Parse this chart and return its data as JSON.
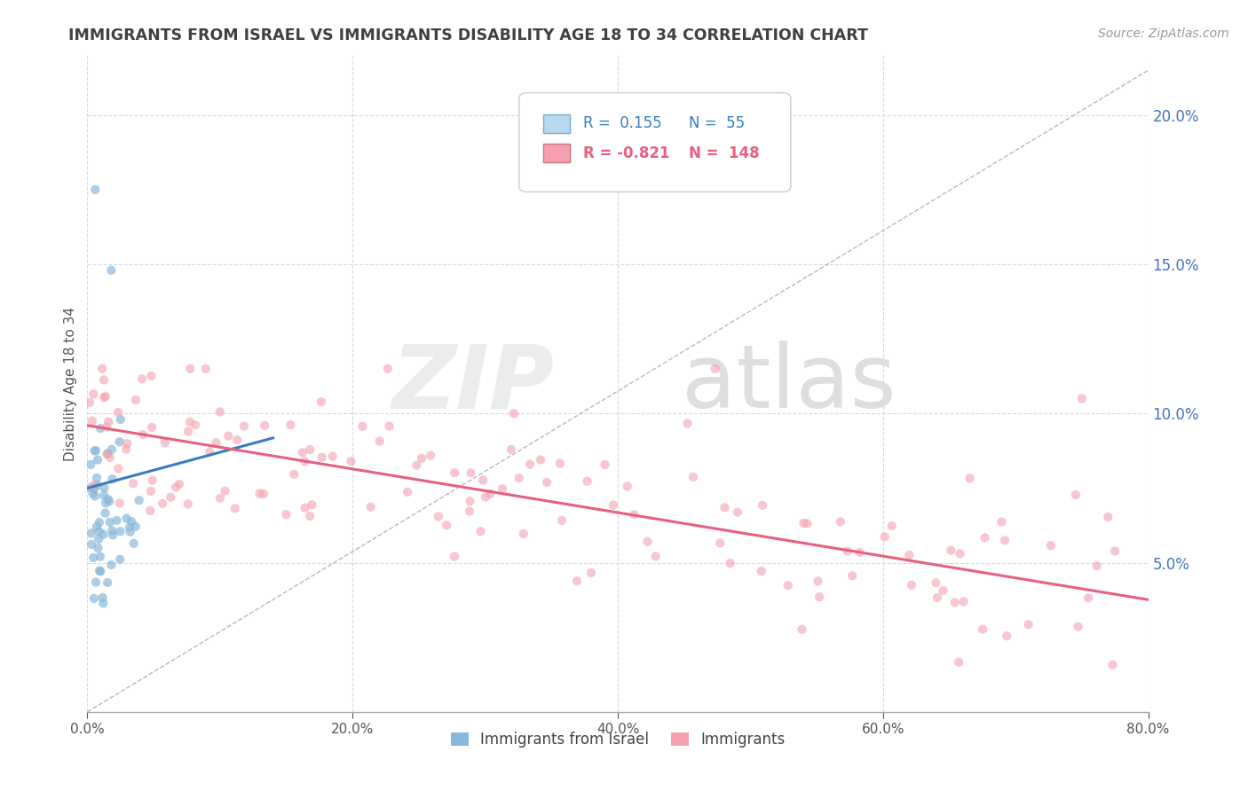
{
  "title": "IMMIGRANTS FROM ISRAEL VS IMMIGRANTS DISABILITY AGE 18 TO 34 CORRELATION CHART",
  "source_text": "Source: ZipAtlas.com",
  "ylabel": "Disability Age 18 to 34",
  "xlim": [
    0.0,
    0.8
  ],
  "ylim": [
    0.0,
    0.22
  ],
  "xtick_values": [
    0.0,
    0.2,
    0.4,
    0.6,
    0.8
  ],
  "ytick_values": [
    0.05,
    0.1,
    0.15,
    0.2
  ],
  "legend1_label": "Immigrants from Israel",
  "legend2_label": "Immigrants",
  "blue_R": 0.155,
  "blue_N": 55,
  "pink_R": -0.821,
  "pink_N": 148,
  "blue_scatter_color": "#89b8db",
  "pink_scatter_color": "#f4a0b0",
  "blue_line_color": "#3a7bbf",
  "pink_line_color": "#e86080",
  "blue_legend_fill": "#b8d8ef",
  "pink_legend_fill": "#f4a0b0",
  "right_tick_color": "#4472c4",
  "watermark_color1": "#e8e8e8",
  "watermark_color2": "#d8d8d8",
  "background_color": "#ffffff",
  "grid_color": "#d0d0d0",
  "title_color": "#404040",
  "diag_line_color": "#b0b0b0",
  "title_fontsize": 12.5,
  "source_fontsize": 10,
  "tick_fontsize": 11,
  "ylabel_fontsize": 11
}
